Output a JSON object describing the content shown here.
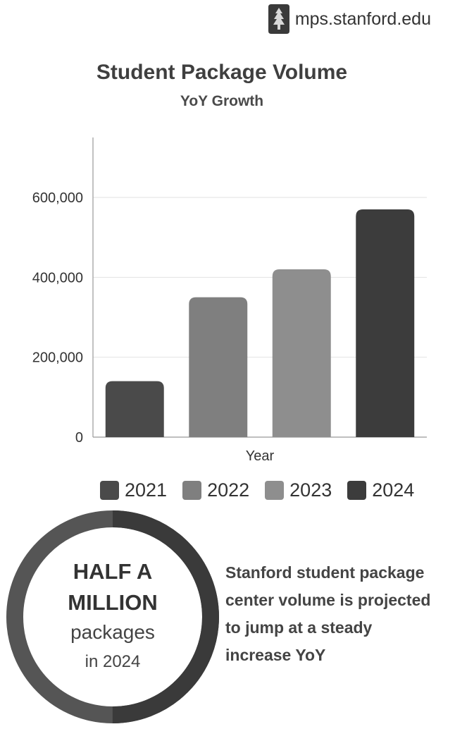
{
  "header": {
    "site_label": "mps.stanford.edu",
    "logo_icon": "stanford-s-tree-logo"
  },
  "chart_data": {
    "type": "bar",
    "title": "Student Package Volume",
    "subtitle": "YoY Growth",
    "xlabel": "Year",
    "ylabel": "",
    "categories": [
      "2021",
      "2022",
      "2023",
      "2024"
    ],
    "values": [
      140000,
      350000,
      420000,
      570000
    ],
    "ylim": [
      0,
      750000
    ],
    "yticks": [
      0,
      200000,
      400000,
      600000
    ],
    "ytick_labels": [
      "0",
      "200,000",
      "400,000",
      "600,000"
    ],
    "colors": [
      "#4a4a4a",
      "#7f7f7f",
      "#8e8e8e",
      "#3c3c3c"
    ],
    "grid": true,
    "legend_position": "bottom"
  },
  "highlight": {
    "line1": "HALF A",
    "line2": "MILLION",
    "line3": "packages",
    "line4": "in 2024",
    "ring_fraction": 0.5,
    "ring_colors": [
      "#3a3a3a",
      "#555555"
    ]
  },
  "blurb": {
    "line1": "Stanford student package",
    "line2": "center volume is projected",
    "line3": "to jump at a steady",
    "line4": "increase YoY"
  }
}
